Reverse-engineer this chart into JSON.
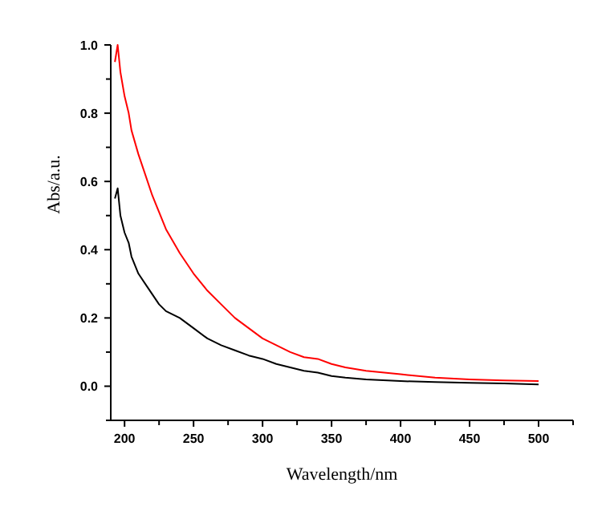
{
  "chart_data": {
    "type": "line",
    "xlabel": "Wavelength/nm",
    "ylabel": "Abs/a.u.",
    "xlim": [
      190,
      525
    ],
    "ylim": [
      -0.1,
      1.0
    ],
    "xticks": [
      200,
      {
        "value": 225,
        "label": null
      },
      250,
      {
        "value": 275,
        "label": null
      },
      300,
      {
        "value": 325,
        "label": null
      },
      350,
      {
        "value": 375,
        "label": null
      },
      400,
      {
        "value": 425,
        "label": null
      },
      450,
      {
        "value": 475,
        "label": null
      },
      500,
      {
        "value": 525,
        "label": null
      }
    ],
    "yticks": [
      {
        "value": -0.1,
        "label": null
      },
      {
        "value": 0,
        "label": "0.0"
      },
      {
        "value": 0.1,
        "label": null
      },
      {
        "value": 0.2,
        "label": "0.2"
      },
      {
        "value": 0.3,
        "label": null
      },
      {
        "value": 0.4,
        "label": "0.4"
      },
      {
        "value": 0.5,
        "label": null
      },
      {
        "value": 0.6,
        "label": "0.6"
      },
      {
        "value": 0.7,
        "label": null
      },
      {
        "value": 0.8,
        "label": "0.8"
      },
      {
        "value": 0.9,
        "label": null
      },
      {
        "value": 1.0,
        "label": "1.0"
      }
    ],
    "grid": false,
    "marker": "none",
    "line_style": "solid",
    "x": [
      193,
      195,
      197,
      200,
      203,
      205,
      210,
      215,
      220,
      225,
      230,
      240,
      250,
      260,
      270,
      280,
      290,
      300,
      310,
      320,
      330,
      340,
      350,
      360,
      375,
      400,
      425,
      450,
      475,
      500
    ],
    "series": [
      {
        "color": "#ff0000",
        "values": [
          0.95,
          1.0,
          0.92,
          0.85,
          0.8,
          0.75,
          0.68,
          0.62,
          0.56,
          0.51,
          0.46,
          0.39,
          0.33,
          0.28,
          0.24,
          0.2,
          0.17,
          0.14,
          0.12,
          0.1,
          0.085,
          0.08,
          0.065,
          0.055,
          0.045,
          0.035,
          0.025,
          0.02,
          0.017,
          0.015
        ]
      },
      {
        "color": "#000000",
        "values": [
          0.55,
          0.58,
          0.5,
          0.45,
          0.42,
          0.38,
          0.33,
          0.3,
          0.27,
          0.24,
          0.22,
          0.2,
          0.17,
          0.14,
          0.12,
          0.105,
          0.09,
          0.08,
          0.065,
          0.055,
          0.045,
          0.04,
          0.03,
          0.025,
          0.02,
          0.015,
          0.012,
          0.01,
          0.008,
          0.005
        ]
      }
    ]
  }
}
